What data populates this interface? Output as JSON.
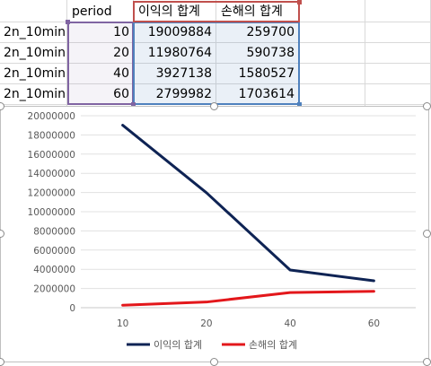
{
  "sheet": {
    "headers": {
      "period": "period",
      "profit_sum": "이익의 합계",
      "loss_sum": "손해의 합계"
    },
    "rows": [
      {
        "name": "2n_10min",
        "period": "10",
        "profit": "19009884",
        "loss": "259700"
      },
      {
        "name": "2n_10min",
        "period": "20",
        "profit": "11980764",
        "loss": "590738"
      },
      {
        "name": "2n_10min",
        "period": "40",
        "profit": "3927138",
        "loss": "1580527"
      },
      {
        "name": "2n_10min",
        "period": "60",
        "profit": "2799982",
        "loss": "1703614"
      }
    ]
  },
  "chart_data": {
    "type": "line",
    "categories": [
      "10",
      "20",
      "40",
      "60"
    ],
    "ylim": [
      0,
      20000000
    ],
    "y_ticks": [
      0,
      2000000,
      4000000,
      6000000,
      8000000,
      10000000,
      12000000,
      14000000,
      16000000,
      18000000,
      20000000
    ],
    "grid": true,
    "legend_position": "bottom",
    "series": [
      {
        "name": "이익의 합계",
        "color": "#0e2354",
        "values": [
          19009884,
          11980764,
          3927138,
          2799982
        ]
      },
      {
        "name": "손해의 합계",
        "color": "#e3171b",
        "values": [
          259700,
          590738,
          1580527,
          1703614
        ]
      }
    ]
  }
}
